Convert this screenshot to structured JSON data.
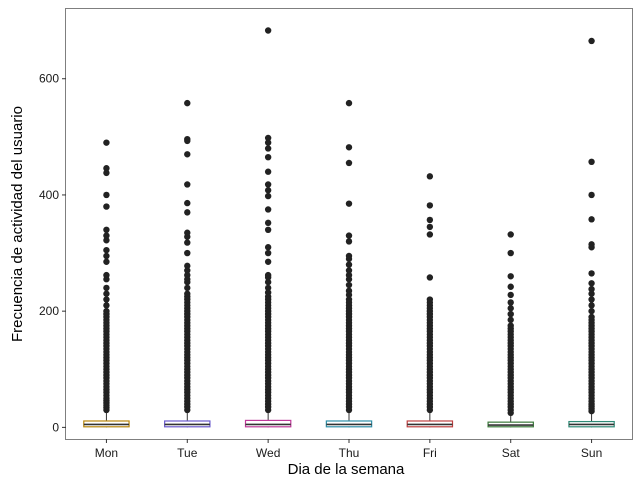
{
  "chart_data": {
    "type": "boxplot",
    "title": "",
    "xlabel": "Dia de la semana",
    "ylabel": "Frecuencia de actividad del usuario",
    "categories": [
      "Mon",
      "Tue",
      "Wed",
      "Thu",
      "Fri",
      "Sat",
      "Sun"
    ],
    "ylim": [
      -20,
      720
    ],
    "yticks": [
      0,
      200,
      400,
      600
    ],
    "grid": false,
    "legend": "none",
    "boxes": [
      {
        "category": "Mon",
        "q1": 1,
        "median": 5,
        "q3": 11,
        "whisker_low": 0,
        "whisker_high": 26,
        "color": "#b8860b",
        "outliers": [
          30,
          34,
          38,
          42,
          46,
          50,
          55,
          60,
          65,
          70,
          75,
          80,
          85,
          90,
          95,
          100,
          105,
          110,
          115,
          120,
          125,
          130,
          135,
          140,
          145,
          150,
          155,
          160,
          165,
          170,
          175,
          180,
          185,
          190,
          195,
          200,
          210,
          220,
          230,
          240,
          255,
          262,
          285,
          295,
          305,
          322,
          330,
          340,
          380,
          400,
          438,
          446,
          490
        ]
      },
      {
        "category": "Tue",
        "q1": 1,
        "median": 5,
        "q3": 11,
        "whisker_low": 0,
        "whisker_high": 26,
        "color": "#6a5acd",
        "outliers": [
          30,
          35,
          40,
          45,
          50,
          55,
          60,
          65,
          70,
          75,
          80,
          85,
          90,
          95,
          100,
          105,
          110,
          115,
          120,
          125,
          130,
          135,
          140,
          145,
          150,
          155,
          160,
          165,
          170,
          175,
          180,
          185,
          190,
          195,
          200,
          205,
          210,
          215,
          220,
          225,
          230,
          240,
          250,
          255,
          262,
          270,
          278,
          300,
          318,
          328,
          335,
          370,
          386,
          418,
          470,
          493,
          496,
          558
        ]
      },
      {
        "category": "Wed",
        "q1": 1,
        "median": 5,
        "q3": 12,
        "whisker_low": 0,
        "whisker_high": 27,
        "color": "#c0399a",
        "outliers": [
          30,
          35,
          40,
          45,
          50,
          55,
          60,
          65,
          70,
          75,
          80,
          85,
          90,
          95,
          100,
          105,
          110,
          115,
          120,
          125,
          130,
          135,
          140,
          145,
          150,
          155,
          160,
          165,
          170,
          175,
          180,
          185,
          190,
          195,
          200,
          205,
          210,
          215,
          220,
          225,
          232,
          240,
          250,
          258,
          262,
          285,
          300,
          310,
          340,
          352,
          375,
          398,
          408,
          418,
          440,
          465,
          480,
          490,
          498,
          683
        ]
      },
      {
        "category": "Thu",
        "q1": 1,
        "median": 5,
        "q3": 11,
        "whisker_low": 0,
        "whisker_high": 26,
        "color": "#2e8fa8",
        "outliers": [
          30,
          35,
          40,
          45,
          50,
          55,
          60,
          65,
          70,
          75,
          80,
          85,
          90,
          95,
          100,
          105,
          110,
          115,
          120,
          125,
          130,
          135,
          140,
          145,
          150,
          155,
          160,
          165,
          170,
          175,
          180,
          185,
          190,
          195,
          200,
          205,
          210,
          215,
          220,
          228,
          235,
          245,
          255,
          262,
          270,
          280,
          290,
          295,
          320,
          330,
          385,
          455,
          482,
          558
        ]
      },
      {
        "category": "Fri",
        "q1": 1,
        "median": 5,
        "q3": 11,
        "whisker_low": 0,
        "whisker_high": 26,
        "color": "#c04040",
        "outliers": [
          30,
          35,
          40,
          45,
          50,
          55,
          60,
          65,
          70,
          75,
          80,
          85,
          90,
          95,
          100,
          105,
          110,
          115,
          120,
          125,
          130,
          135,
          140,
          145,
          150,
          155,
          160,
          165,
          170,
          175,
          180,
          185,
          190,
          195,
          200,
          205,
          210,
          215,
          220,
          258,
          332,
          345,
          357,
          382,
          432
        ]
      },
      {
        "category": "Sat",
        "q1": 1,
        "median": 4,
        "q3": 9,
        "whisker_low": 0,
        "whisker_high": 21,
        "color": "#3a7a3a",
        "outliers": [
          25,
          30,
          35,
          40,
          45,
          50,
          55,
          60,
          65,
          70,
          75,
          80,
          85,
          90,
          95,
          100,
          105,
          110,
          115,
          120,
          125,
          130,
          135,
          140,
          145,
          150,
          155,
          160,
          165,
          170,
          175,
          185,
          195,
          205,
          215,
          228,
          242,
          260,
          300,
          332
        ]
      },
      {
        "category": "Sun",
        "q1": 1,
        "median": 5,
        "q3": 10,
        "whisker_low": 0,
        "whisker_high": 24,
        "color": "#2e8b77",
        "outliers": [
          28,
          32,
          36,
          40,
          45,
          50,
          55,
          60,
          65,
          70,
          75,
          80,
          85,
          90,
          95,
          100,
          105,
          110,
          115,
          120,
          125,
          130,
          135,
          140,
          145,
          150,
          155,
          160,
          165,
          170,
          175,
          180,
          185,
          190,
          200,
          210,
          220,
          230,
          238,
          248,
          265,
          310,
          315,
          358,
          400,
          457,
          665
        ]
      }
    ]
  }
}
